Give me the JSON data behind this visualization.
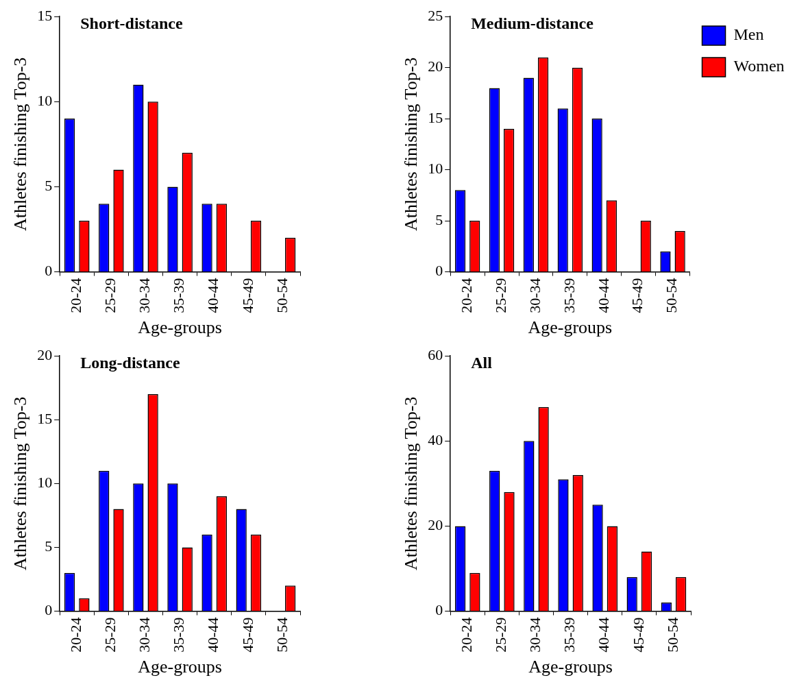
{
  "chart_data": [
    {
      "type": "bar",
      "title": "Short-distance",
      "xlabel": "Age-groups",
      "ylabel": "Athletes finishing Top-3",
      "categories": [
        "20-24",
        "25-29",
        "30-34",
        "35-39",
        "40-44",
        "45-49",
        "50-54"
      ],
      "ylim": [
        0,
        15
      ],
      "yticks": [
        0,
        5,
        10,
        15
      ],
      "legend": false,
      "series": [
        {
          "color": "#0000ff",
          "values": [
            9,
            4,
            11,
            5,
            4,
            0,
            0
          ]
        },
        {
          "color": "#ff0000",
          "values": [
            3,
            6,
            10,
            7,
            4,
            3,
            2
          ]
        }
      ]
    },
    {
      "type": "bar",
      "title": "Medium-distance",
      "xlabel": "Age-groups",
      "ylabel": "Athletes finishing Top-3",
      "categories": [
        "20-24",
        "25-29",
        "30-34",
        "35-39",
        "40-44",
        "45-49",
        "50-54"
      ],
      "ylim": [
        0,
        25
      ],
      "yticks": [
        0,
        5,
        10,
        15,
        20,
        25
      ],
      "legend": "top right",
      "series": [
        {
          "name": "Men",
          "color": "#0000ff",
          "values": [
            8,
            18,
            19,
            16,
            15,
            0,
            2
          ]
        },
        {
          "name": "Women",
          "color": "#ff0000",
          "values": [
            5,
            14,
            21,
            20,
            7,
            5,
            4
          ]
        }
      ]
    },
    {
      "type": "bar",
      "title": "Long-distance",
      "xlabel": "Age-groups",
      "ylabel": "Athletes finishing Top-3",
      "categories": [
        "20-24",
        "25-29",
        "30-34",
        "35-39",
        "40-44",
        "45-49",
        "50-54"
      ],
      "ylim": [
        0,
        20
      ],
      "yticks": [
        0,
        5,
        10,
        15,
        20
      ],
      "legend": false,
      "series": [
        {
          "color": "#0000ff",
          "values": [
            3,
            11,
            10,
            10,
            6,
            8,
            0
          ]
        },
        {
          "color": "#ff0000",
          "values": [
            1,
            8,
            17,
            5,
            9,
            6,
            2
          ]
        }
      ]
    },
    {
      "type": "bar",
      "title": "All",
      "xlabel": "Age-groups",
      "ylabel": "Athletes finishing Top-3",
      "categories": [
        "20-24",
        "25-29",
        "30-34",
        "35-39",
        "40-44",
        "45-49",
        "50-54"
      ],
      "ylim": [
        0,
        60
      ],
      "yticks": [
        0,
        20,
        40,
        60
      ],
      "legend": false,
      "series": [
        {
          "color": "#0000ff",
          "values": [
            20,
            33,
            40,
            31,
            25,
            8,
            2
          ]
        },
        {
          "color": "#ff0000",
          "values": [
            9,
            28,
            48,
            32,
            20,
            14,
            8
          ]
        }
      ]
    }
  ]
}
